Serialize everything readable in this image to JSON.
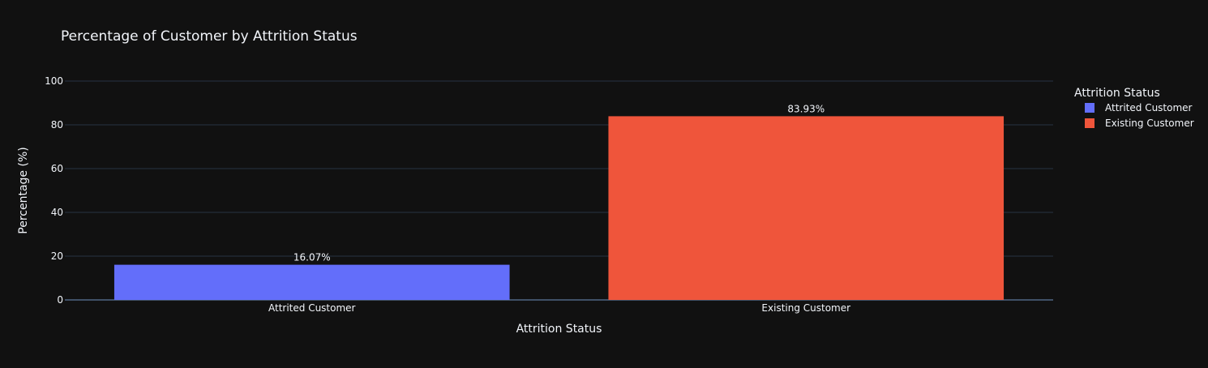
{
  "chart_data": {
    "type": "bar",
    "title": "Percentage of Customer by Attrition Status",
    "xlabel": "Attrition Status",
    "ylabel": "Percentage (%)",
    "categories": [
      "Attrited Customer",
      "Existing Customer"
    ],
    "values": [
      16.07,
      83.93
    ],
    "data_labels": [
      "16.07%",
      "83.93%"
    ],
    "colors": [
      "#636efa",
      "#ef553b"
    ],
    "ylim": [
      0,
      100
    ],
    "yticks": [
      0,
      20,
      40,
      60,
      80,
      100
    ],
    "grid": true,
    "legend": {
      "title": "Attrition Status",
      "placement": "top-right",
      "entries": [
        {
          "name": "Attrited Customer",
          "color": "#636efa"
        },
        {
          "name": "Existing Customer",
          "color": "#ef553b"
        }
      ]
    },
    "background": "#111111",
    "grid_color": "#283442",
    "text_color": "#f2f5fa"
  }
}
